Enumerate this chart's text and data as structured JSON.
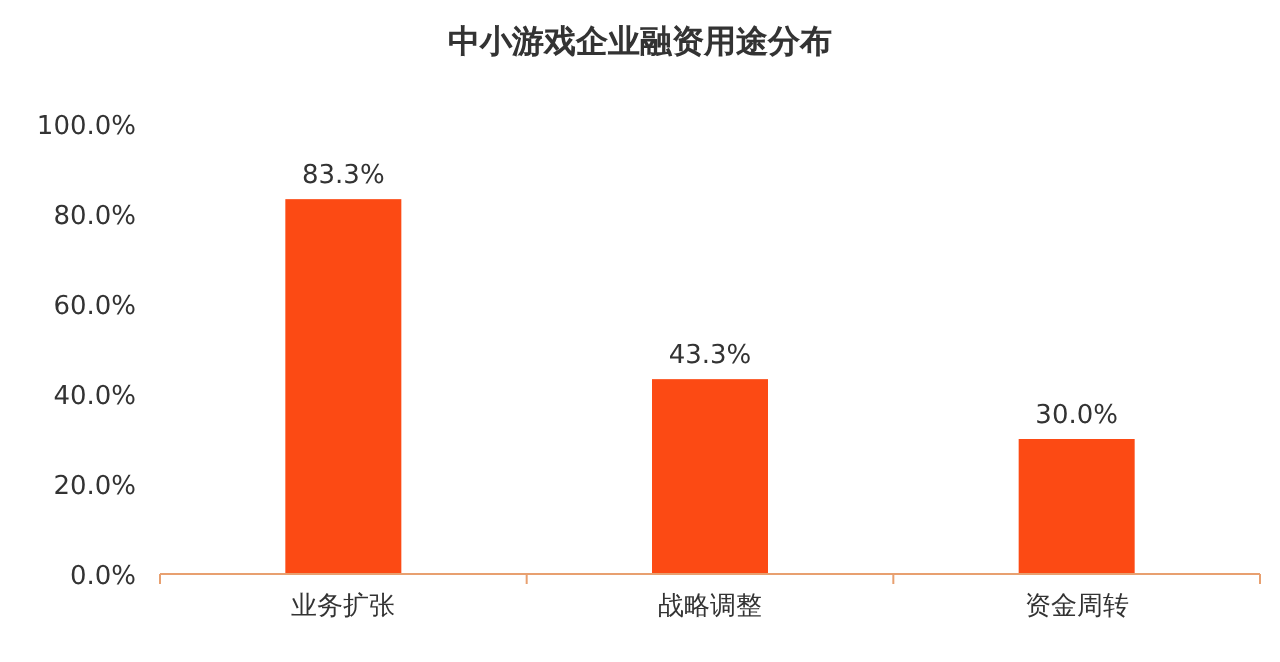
{
  "chart_data": {
    "type": "bar",
    "title": "中小游戏企业融资用途分布",
    "categories": [
      "业务扩张",
      "战略调整",
      "资金周转"
    ],
    "values": [
      83.3,
      43.3,
      30.0
    ],
    "value_labels": [
      "83.3%",
      "43.3%",
      "30.0%"
    ],
    "color": "#fc4a14",
    "ylim": [
      0,
      100
    ],
    "yticks": [
      {
        "value": 0,
        "label": "0.0%"
      },
      {
        "value": 20,
        "label": "20.0%"
      },
      {
        "value": 40,
        "label": "40.0%"
      },
      {
        "value": 60,
        "label": "60.0%"
      },
      {
        "value": 80,
        "label": "80.0%"
      },
      {
        "value": 100,
        "label": "100.0%"
      }
    ],
    "grid": false
  }
}
